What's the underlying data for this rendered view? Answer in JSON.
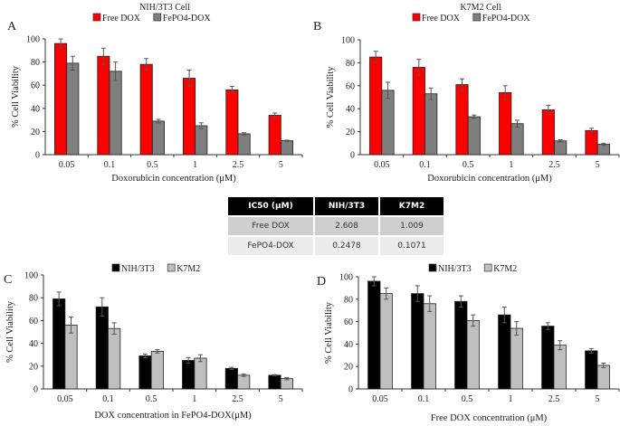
{
  "chart_data": [
    {
      "panel": "A",
      "type": "bar",
      "title": "NIH/3T3 Cell",
      "xlabel": "Doxorubicin concentration (μM)",
      "ylabel": "% Cell Viability",
      "ylim": [
        0,
        100
      ],
      "yticks": [
        0,
        20,
        40,
        60,
        80,
        100
      ],
      "categories": [
        "0.05",
        "0.1",
        "0.5",
        "1",
        "2.5",
        "5"
      ],
      "legend": "top",
      "series": [
        {
          "name": "Free DOX",
          "color": "#ff0000",
          "values": [
            96,
            85,
            78,
            66,
            56,
            34
          ],
          "errors": [
            4,
            7,
            5,
            7,
            3,
            2
          ]
        },
        {
          "name": "FePO4-DOX",
          "color": "#7f7f7f",
          "values": [
            79,
            72,
            29,
            25,
            18,
            12
          ],
          "errors": [
            6,
            8,
            1.5,
            2.5,
            1,
            0.5
          ]
        }
      ]
    },
    {
      "panel": "B",
      "type": "bar",
      "title": "K7M2 Cell",
      "xlabel": "Doxorubicin concentration (μM)",
      "ylabel": "% Cell Viability",
      "ylim": [
        0,
        100
      ],
      "yticks": [
        0,
        20,
        40,
        60,
        80,
        100
      ],
      "categories": [
        "0.05",
        "0.1",
        "0.5",
        "1",
        "2.5",
        "5"
      ],
      "legend": "top",
      "series": [
        {
          "name": "Free DOX",
          "color": "#ff0000",
          "values": [
            85,
            76,
            61,
            54,
            39,
            21
          ],
          "errors": [
            5,
            7,
            5,
            6,
            4,
            2
          ]
        },
        {
          "name": "FePO4-DOX",
          "color": "#7f7f7f",
          "values": [
            56,
            53,
            33,
            27,
            12,
            9
          ],
          "errors": [
            7,
            5,
            1.5,
            3,
            1,
            1
          ]
        }
      ]
    },
    {
      "panel": "C",
      "type": "bar",
      "title": "",
      "xlabel": "DOX concentration in FePO4-DOX(μM)",
      "ylabel": "% Cell Viability",
      "ylim": [
        0,
        100
      ],
      "yticks": [
        0,
        20,
        40,
        60,
        80,
        100
      ],
      "categories": [
        "0.05",
        "0.1",
        "0.5",
        "1",
        "2.5",
        "5"
      ],
      "legend": "top",
      "series": [
        {
          "name": "NIH/3T3",
          "color": "#000000",
          "values": [
            79,
            72,
            29,
            25,
            18,
            12
          ],
          "errors": [
            6,
            8,
            1.5,
            2.5,
            1,
            0.5
          ]
        },
        {
          "name": "K7M2",
          "color": "#bfbfbf",
          "values": [
            56,
            53,
            33,
            27,
            12,
            9
          ],
          "errors": [
            7,
            5,
            1.5,
            3,
            1,
            1
          ]
        }
      ]
    },
    {
      "panel": "D",
      "type": "bar",
      "title": "",
      "xlabel": "Free DOX concentration (μM)",
      "ylabel": "% Cell Viability",
      "ylim": [
        0,
        100
      ],
      "yticks": [
        0,
        20,
        40,
        60,
        80,
        100
      ],
      "categories": [
        "0.05",
        "0.1",
        "0.5",
        "1",
        "2.5",
        "5"
      ],
      "legend": "top",
      "series": [
        {
          "name": "NIH/3T3",
          "color": "#000000",
          "values": [
            96,
            85,
            78,
            66,
            56,
            34
          ],
          "errors": [
            4,
            7,
            5,
            7,
            3,
            2
          ]
        },
        {
          "name": "K7M2",
          "color": "#bfbfbf",
          "values": [
            85,
            76,
            61,
            54,
            39,
            21
          ],
          "errors": [
            5,
            7,
            5,
            6,
            4,
            2
          ]
        }
      ]
    }
  ],
  "ic50_table": {
    "headers": [
      "IC50 (μM)",
      "NIH/3T3",
      "K7M2"
    ],
    "rows": [
      [
        "Free DOX",
        "2.608",
        "1.009"
      ],
      [
        "FePO4-DOX",
        "0.2478",
        "0.1071"
      ]
    ]
  }
}
